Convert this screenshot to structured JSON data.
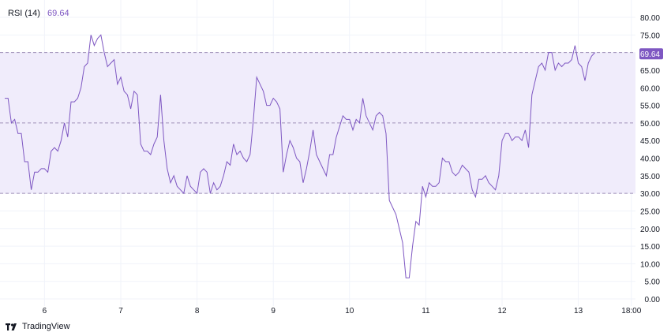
{
  "legend": {
    "indicator": "RSI (14)",
    "value": "69.64"
  },
  "brand": {
    "name": "TradingView"
  },
  "colors": {
    "line": "#7e57c2",
    "band_fill": "#f0ecfb",
    "band_line": "#9e90b8",
    "badge_bg": "#7e57c2",
    "badge_text": "#ffffff",
    "axis_text": "#131722",
    "grid": "#f0f3fa"
  },
  "chart_data": {
    "type": "line",
    "series": [
      {
        "values": [
          57,
          57,
          50,
          51,
          47,
          47,
          39,
          39,
          31,
          36,
          36,
          37,
          37,
          36,
          42,
          43,
          42,
          45,
          50,
          46,
          56,
          56,
          57,
          60,
          66,
          67,
          75,
          72,
          74,
          75,
          70,
          66,
          67,
          68,
          61,
          63,
          59,
          58,
          54,
          59,
          58,
          44,
          42,
          42,
          41,
          44,
          46,
          58,
          45,
          37,
          33,
          35,
          32,
          31,
          30,
          35,
          32,
          31,
          30,
          36,
          37,
          36,
          30,
          33,
          31,
          32,
          35,
          39,
          38,
          44,
          41,
          42,
          40,
          39,
          41,
          51,
          63,
          61,
          59,
          55,
          55,
          57,
          56,
          54,
          36,
          41,
          45,
          43,
          40,
          39,
          33,
          37,
          42,
          48,
          41,
          39,
          37,
          35,
          41,
          41,
          46,
          49,
          52,
          51,
          51,
          48,
          51,
          50,
          57,
          52,
          50,
          48,
          52,
          53,
          52,
          47,
          28,
          26,
          24,
          20,
          16,
          6,
          6,
          15,
          22,
          21,
          32,
          29,
          33,
          32,
          32,
          33,
          40,
          39,
          39,
          36,
          35,
          36,
          38,
          37,
          36,
          31,
          29,
          34,
          34,
          35,
          33,
          32,
          31,
          35,
          45,
          47,
          47,
          45,
          46,
          46,
          45,
          48,
          43,
          58,
          62,
          66,
          67,
          65,
          70,
          70,
          65,
          67,
          66,
          67,
          67,
          68,
          72,
          67,
          66,
          62,
          67,
          69,
          70
        ]
      }
    ],
    "x_ticks": [
      {
        "label": "6",
        "index": 12
      },
      {
        "label": "7",
        "index": 35
      },
      {
        "label": "8",
        "index": 58
      },
      {
        "label": "9",
        "index": 81
      },
      {
        "label": "10",
        "index": 104
      },
      {
        "label": "11",
        "index": 127
      },
      {
        "label": "12",
        "index": 150
      },
      {
        "label": "13",
        "index": 173
      },
      {
        "label": "18:00",
        "index": 189
      }
    ],
    "y_ticks": [
      "80.00",
      "75.00",
      "70.00",
      "65.00",
      "60.00",
      "55.00",
      "50.00",
      "45.00",
      "40.00",
      "35.00",
      "30.00",
      "25.00",
      "20.00",
      "15.00",
      "10.00",
      "5.00",
      "0.00"
    ],
    "ylim": [
      0,
      80
    ],
    "band": {
      "upper": 70,
      "middle": 50,
      "lower": 30
    },
    "last_value_label": "69.64",
    "last_value": 69.64,
    "grid": true
  }
}
